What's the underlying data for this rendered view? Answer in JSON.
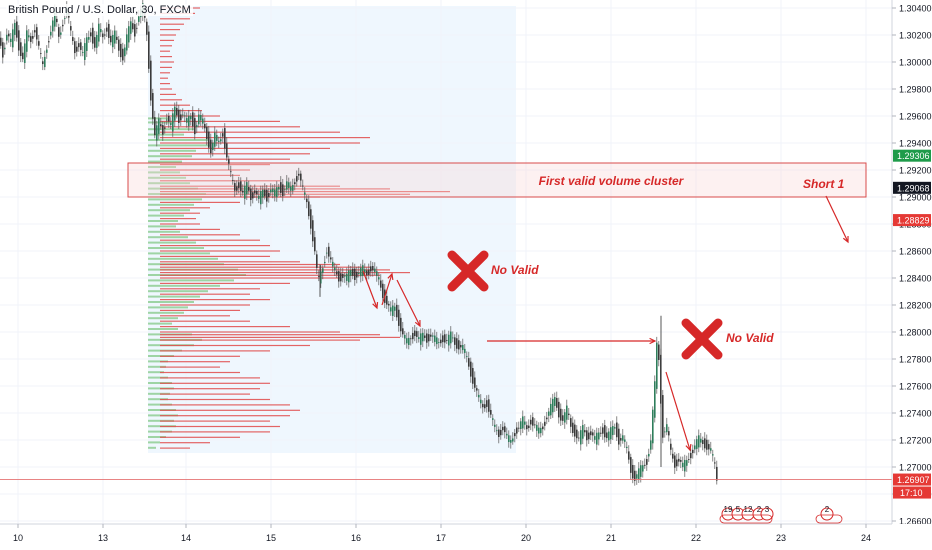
{
  "header": {
    "symbol_title": "British Pound / U.S. Dollar, 30, FXCM"
  },
  "chart_data": {
    "type": "candlestick",
    "symbol": "British Pound / U.S. Dollar",
    "interval": "30",
    "source": "FXCM",
    "y_axis": {
      "ticks": [
        "1.30400",
        "1.30200",
        "1.30000",
        "1.29800",
        "1.29600",
        "1.29400",
        "1.29200",
        "1.29000",
        "1.28800",
        "1.28600",
        "1.28400",
        "1.28200",
        "1.28000",
        "1.27800",
        "1.27600",
        "1.27400",
        "1.27200",
        "1.27000",
        "1.26800",
        "1.26600"
      ],
      "ylim": [
        1.2655,
        1.3047
      ]
    },
    "x_axis": {
      "ticks": [
        "10",
        "13",
        "14",
        "15",
        "16",
        "17",
        "20",
        "21",
        "22",
        "23",
        "24"
      ]
    },
    "price_labels": [
      {
        "value": "1.29306",
        "color": "#1e9b4a"
      },
      {
        "value": "1.29068",
        "color": "#131722"
      },
      {
        "value": "1.28829",
        "color": "#e53935"
      },
      {
        "value": "1.26907",
        "color": "#e53935"
      }
    ],
    "countdown": "17:10",
    "current_price": 1.26907,
    "annotations": {
      "cluster_label": "First valid volume cluster",
      "short_label": "Short 1",
      "no_valid_1": "No Valid",
      "no_valid_2": "No Valid"
    },
    "calendar_events": [
      "19",
      "5",
      "12",
      "2",
      "3",
      "2"
    ],
    "close_path": [
      [
        0,
        1.3018
      ],
      [
        4,
        1.3006
      ],
      [
        8,
        1.3022
      ],
      [
        12,
        1.3014
      ],
      [
        16,
        1.3028
      ],
      [
        20,
        1.3012
      ],
      [
        24,
        1.3002
      ],
      [
        28,
        1.302
      ],
      [
        32,
        1.3016
      ],
      [
        36,
        1.3025
      ],
      [
        40,
        1.301
      ],
      [
        44,
        1.2996
      ],
      [
        48,
        1.3012
      ],
      [
        52,
        1.3024
      ],
      [
        56,
        1.3035
      ],
      [
        60,
        1.3018
      ],
      [
        64,
        1.303
      ],
      [
        68,
        1.304
      ],
      [
        72,
        1.302
      ],
      [
        76,
        1.3008
      ],
      [
        80,
        1.3014
      ],
      [
        84,
        1.3005
      ],
      [
        88,
        1.3016
      ],
      [
        92,
        1.3022
      ],
      [
        96,
        1.3012
      ],
      [
        100,
        1.3025
      ],
      [
        104,
        1.3018
      ],
      [
        108,
        1.3026
      ],
      [
        112,
        1.3014
      ],
      [
        116,
        1.302
      ],
      [
        120,
        1.301
      ],
      [
        124,
        1.3004
      ],
      [
        128,
        1.3018
      ],
      [
        132,
        1.3028
      ],
      [
        136,
        1.3022
      ],
      [
        140,
        1.3035
      ],
      [
        144,
        1.304
      ],
      [
        148,
        1.302
      ],
      [
        152,
        1.2975
      ],
      [
        154,
        1.296
      ],
      [
        156,
        1.2945
      ],
      [
        160,
        1.2955
      ],
      [
        164,
        1.2948
      ],
      [
        168,
        1.296
      ],
      [
        172,
        1.2952
      ],
      [
        176,
        1.2965
      ],
      [
        180,
        1.2958
      ],
      [
        184,
        1.2962
      ],
      [
        188,
        1.2955
      ],
      [
        192,
        1.296
      ],
      [
        196,
        1.295
      ],
      [
        200,
        1.296
      ],
      [
        204,
        1.2955
      ],
      [
        208,
        1.2945
      ],
      [
        212,
        1.2935
      ],
      [
        216,
        1.2945
      ],
      [
        220,
        1.294
      ],
      [
        224,
        1.2948
      ],
      [
        228,
        1.293
      ],
      [
        232,
        1.2915
      ],
      [
        236,
        1.2905
      ],
      [
        240,
        1.291
      ],
      [
        244,
        1.2902
      ],
      [
        248,
        1.2908
      ],
      [
        252,
        1.29
      ],
      [
        256,
        1.2905
      ],
      [
        260,
        1.2898
      ],
      [
        264,
        1.2904
      ],
      [
        268,
        1.29
      ],
      [
        272,
        1.2906
      ],
      [
        276,
        1.2902
      ],
      [
        280,
        1.2908
      ],
      [
        284,
        1.2904
      ],
      [
        288,
        1.291
      ],
      [
        292,
        1.2905
      ],
      [
        296,
        1.2912
      ],
      [
        300,
        1.2918
      ],
      [
        304,
        1.2905
      ],
      [
        308,
        1.2895
      ],
      [
        312,
        1.288
      ],
      [
        316,
        1.286
      ],
      [
        318,
        1.2845
      ],
      [
        320,
        1.2838
      ],
      [
        324,
        1.2848
      ],
      [
        328,
        1.2862
      ],
      [
        332,
        1.2852
      ],
      [
        336,
        1.2845
      ],
      [
        340,
        1.284
      ],
      [
        344,
        1.2842
      ],
      [
        348,
        1.284
      ],
      [
        352,
        1.2845
      ],
      [
        356,
        1.2842
      ],
      [
        360,
        1.2844
      ],
      [
        364,
        1.2846
      ],
      [
        368,
        1.2843
      ],
      [
        372,
        1.2848
      ],
      [
        376,
        1.2845
      ],
      [
        380,
        1.2838
      ],
      [
        384,
        1.2828
      ],
      [
        388,
        1.2822
      ],
      [
        392,
        1.2815
      ],
      [
        396,
        1.2818
      ],
      [
        400,
        1.2808
      ],
      [
        404,
        1.2798
      ],
      [
        408,
        1.2792
      ],
      [
        412,
        1.2796
      ],
      [
        416,
        1.28
      ],
      [
        420,
        1.2794
      ],
      [
        424,
        1.2797
      ],
      [
        428,
        1.2795
      ],
      [
        432,
        1.2798
      ],
      [
        436,
        1.2794
      ],
      [
        440,
        1.2792
      ],
      [
        444,
        1.2796
      ],
      [
        448,
        1.2793
      ],
      [
        452,
        1.2797
      ],
      [
        456,
        1.2792
      ],
      [
        460,
        1.279
      ],
      [
        464,
        1.2788
      ],
      [
        468,
        1.278
      ],
      [
        472,
        1.277
      ],
      [
        476,
        1.276
      ],
      [
        480,
        1.275
      ],
      [
        484,
        1.2744
      ],
      [
        488,
        1.2748
      ],
      [
        492,
        1.2738
      ],
      [
        496,
        1.2728
      ],
      [
        500,
        1.2724
      ],
      [
        504,
        1.273
      ],
      [
        508,
        1.2722
      ],
      [
        512,
        1.2718
      ],
      [
        516,
        1.2726
      ],
      [
        520,
        1.273
      ],
      [
        524,
        1.2734
      ],
      [
        528,
        1.2728
      ],
      [
        532,
        1.2735
      ],
      [
        536,
        1.273
      ],
      [
        540,
        1.2726
      ],
      [
        544,
        1.273
      ],
      [
        548,
        1.2738
      ],
      [
        552,
        1.2744
      ],
      [
        556,
        1.275
      ],
      [
        560,
        1.274
      ],
      [
        564,
        1.2735
      ],
      [
        568,
        1.2742
      ],
      [
        572,
        1.273
      ],
      [
        576,
        1.2726
      ],
      [
        580,
        1.272
      ],
      [
        584,
        1.2728
      ],
      [
        588,
        1.2722
      ],
      [
        592,
        1.2726
      ],
      [
        596,
        1.272
      ],
      [
        600,
        1.2724
      ],
      [
        604,
        1.2728
      ],
      [
        608,
        1.2722
      ],
      [
        612,
        1.2726
      ],
      [
        616,
        1.273
      ],
      [
        620,
        1.272
      ],
      [
        624,
        1.2722
      ],
      [
        628,
        1.2712
      ],
      [
        632,
        1.2698
      ],
      [
        636,
        1.2692
      ],
      [
        640,
        1.2696
      ],
      [
        644,
        1.27
      ],
      [
        648,
        1.2705
      ],
      [
        652,
        1.272
      ],
      [
        654,
        1.274
      ],
      [
        656,
        1.276
      ],
      [
        658,
        1.279
      ],
      [
        660,
        1.278
      ],
      [
        662,
        1.275
      ],
      [
        664,
        1.2725
      ],
      [
        668,
        1.273
      ],
      [
        672,
        1.271
      ],
      [
        676,
        1.2702
      ],
      [
        680,
        1.2706
      ],
      [
        684,
        1.27
      ],
      [
        688,
        1.2704
      ],
      [
        692,
        1.271
      ],
      [
        696,
        1.2716
      ],
      [
        700,
        1.272
      ],
      [
        704,
        1.2718
      ],
      [
        708,
        1.2716
      ],
      [
        712,
        1.2712
      ],
      [
        716,
        1.27
      ],
      [
        718,
        1.269
      ]
    ],
    "volume_profile_up": [
      [
        1.2958,
        20
      ],
      [
        1.2955,
        26
      ],
      [
        1.295,
        46
      ],
      [
        1.2946,
        36
      ],
      [
        1.2942,
        60
      ],
      [
        1.2938,
        62
      ],
      [
        1.2934,
        48
      ],
      [
        1.293,
        44
      ],
      [
        1.2926,
        34
      ],
      [
        1.2922,
        28
      ],
      [
        1.2918,
        32
      ],
      [
        1.2914,
        38
      ],
      [
        1.291,
        42
      ],
      [
        1.2906,
        50
      ],
      [
        1.2902,
        58
      ],
      [
        1.2898,
        54
      ],
      [
        1.2894,
        46
      ],
      [
        1.289,
        42
      ],
      [
        1.2886,
        36
      ],
      [
        1.2882,
        30
      ],
      [
        1.2878,
        28
      ],
      [
        1.2874,
        32
      ],
      [
        1.287,
        40
      ],
      [
        1.2866,
        48
      ],
      [
        1.2862,
        56
      ],
      [
        1.2858,
        62
      ],
      [
        1.2854,
        70
      ],
      [
        1.285,
        76
      ],
      [
        1.2846,
        90
      ],
      [
        1.2842,
        98
      ],
      [
        1.2838,
        86
      ],
      [
        1.2834,
        72
      ],
      [
        1.283,
        60
      ],
      [
        1.2826,
        52
      ],
      [
        1.2822,
        46
      ],
      [
        1.2818,
        40
      ],
      [
        1.2814,
        36
      ],
      [
        1.281,
        30
      ],
      [
        1.2806,
        24
      ],
      [
        1.2802,
        30
      ],
      [
        1.2798,
        44
      ],
      [
        1.2794,
        54
      ],
      [
        1.279,
        46
      ],
      [
        1.2786,
        34
      ],
      [
        1.2782,
        26
      ],
      [
        1.2778,
        20
      ],
      [
        1.2774,
        18
      ],
      [
        1.277,
        16
      ],
      [
        1.2766,
        20
      ],
      [
        1.2762,
        24
      ],
      [
        1.2758,
        26
      ],
      [
        1.2754,
        22
      ],
      [
        1.275,
        20
      ],
      [
        1.2746,
        24
      ],
      [
        1.2742,
        28
      ],
      [
        1.2738,
        30
      ],
      [
        1.2734,
        26
      ],
      [
        1.273,
        28
      ],
      [
        1.2726,
        24
      ],
      [
        1.2722,
        18
      ],
      [
        1.2718,
        12
      ],
      [
        1.2714,
        8
      ]
    ],
    "volume_profile_down": [
      [
        1.304,
        40
      ],
      [
        1.3036,
        35
      ],
      [
        1.3032,
        30
      ],
      [
        1.3028,
        24
      ],
      [
        1.3024,
        20
      ],
      [
        1.302,
        16
      ],
      [
        1.3016,
        14
      ],
      [
        1.3012,
        12
      ],
      [
        1.3008,
        10
      ],
      [
        1.3004,
        12
      ],
      [
        1.3,
        14
      ],
      [
        1.2996,
        12
      ],
      [
        1.2992,
        10
      ],
      [
        1.2988,
        8
      ],
      [
        1.2984,
        10
      ],
      [
        1.298,
        12
      ],
      [
        1.2976,
        16
      ],
      [
        1.2972,
        22
      ],
      [
        1.2968,
        30
      ],
      [
        1.2964,
        42
      ],
      [
        1.296,
        60
      ],
      [
        1.2956,
        120
      ],
      [
        1.2952,
        140
      ],
      [
        1.2948,
        180
      ],
      [
        1.2944,
        210
      ],
      [
        1.294,
        200
      ],
      [
        1.2936,
        170
      ],
      [
        1.2932,
        150
      ],
      [
        1.2928,
        130
      ],
      [
        1.2924,
        110
      ],
      [
        1.292,
        90
      ],
      [
        1.2916,
        80
      ],
      [
        1.2912,
        120
      ],
      [
        1.2908,
        180
      ],
      [
        1.2906,
        230
      ],
      [
        1.2904,
        290
      ],
      [
        1.2902,
        250
      ],
      [
        1.29,
        160
      ],
      [
        1.2896,
        80
      ],
      [
        1.2892,
        50
      ],
      [
        1.2888,
        40
      ],
      [
        1.2884,
        36
      ],
      [
        1.288,
        40
      ],
      [
        1.2876,
        60
      ],
      [
        1.2872,
        80
      ],
      [
        1.2868,
        100
      ],
      [
        1.2864,
        110
      ],
      [
        1.286,
        120
      ],
      [
        1.2856,
        110
      ],
      [
        1.2852,
        140
      ],
      [
        1.285,
        180
      ],
      [
        1.2848,
        210
      ],
      [
        1.2846,
        230
      ],
      [
        1.2844,
        250
      ],
      [
        1.2842,
        220
      ],
      [
        1.284,
        180
      ],
      [
        1.2836,
        130
      ],
      [
        1.2832,
        100
      ],
      [
        1.2828,
        90
      ],
      [
        1.2824,
        110
      ],
      [
        1.282,
        90
      ],
      [
        1.2816,
        80
      ],
      [
        1.2812,
        70
      ],
      [
        1.2808,
        90
      ],
      [
        1.2804,
        130
      ],
      [
        1.28,
        180
      ],
      [
        1.2798,
        220
      ],
      [
        1.2796,
        240
      ],
      [
        1.2794,
        200
      ],
      [
        1.279,
        150
      ],
      [
        1.2786,
        110
      ],
      [
        1.2782,
        80
      ],
      [
        1.2778,
        70
      ],
      [
        1.2774,
        60
      ],
      [
        1.277,
        80
      ],
      [
        1.2766,
        100
      ],
      [
        1.2762,
        110
      ],
      [
        1.2758,
        100
      ],
      [
        1.2754,
        90
      ],
      [
        1.275,
        110
      ],
      [
        1.2746,
        130
      ],
      [
        1.2742,
        140
      ],
      [
        1.2738,
        130
      ],
      [
        1.2734,
        110
      ],
      [
        1.273,
        120
      ],
      [
        1.2726,
        110
      ],
      [
        1.2722,
        80
      ],
      [
        1.2718,
        50
      ],
      [
        1.2714,
        30
      ]
    ]
  }
}
